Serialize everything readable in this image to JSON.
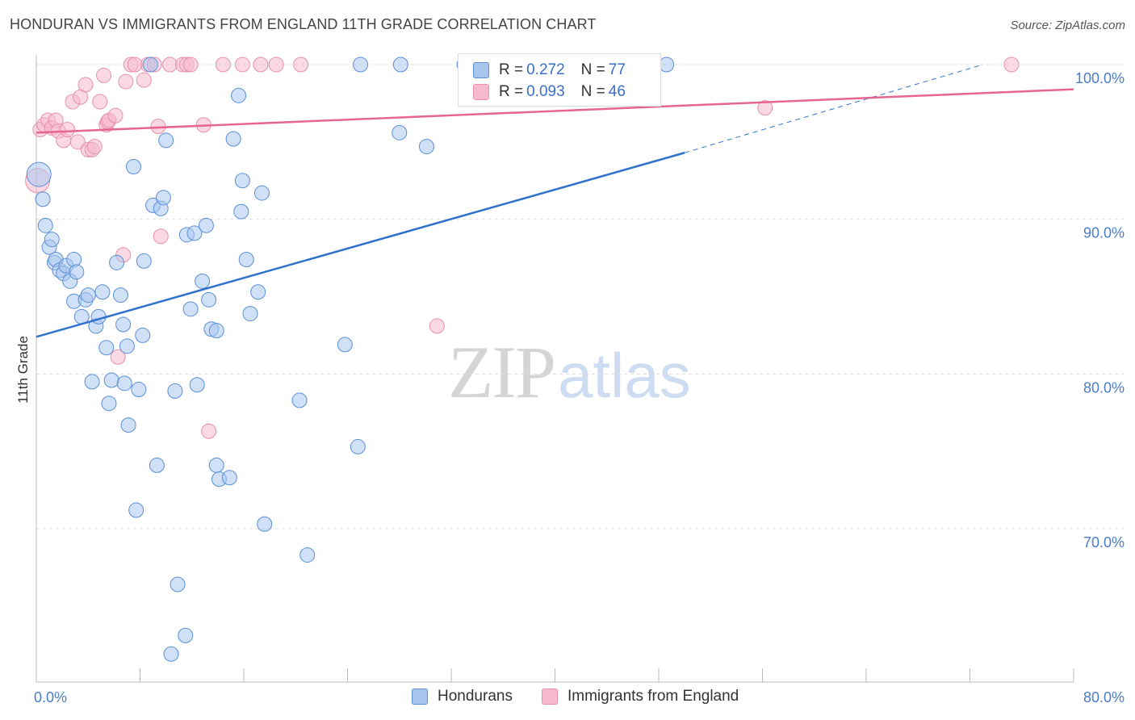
{
  "title": "HONDURAN VS IMMIGRANTS FROM ENGLAND 11TH GRADE CORRELATION CHART",
  "source": "Source: ZipAtlas.com",
  "watermark": {
    "zip": "ZIP",
    "atlas": "atlas"
  },
  "legend_top": {
    "rows": [
      {
        "r_label": "R = ",
        "r_value": "0.272",
        "n_label": "N = ",
        "n_value": "77"
      },
      {
        "r_label": "R = ",
        "r_value": "0.093",
        "n_label": "N = ",
        "n_value": "46"
      }
    ]
  },
  "legend_bottom": [
    "Hondurans",
    "Immigrants from England"
  ],
  "colors": {
    "blue_fill": "#a9c6ee",
    "blue_stroke": "#5b8fd6",
    "blue_line": "#2f72cc",
    "pink_fill": "#f6b9cd",
    "pink_stroke": "#e890ab",
    "pink_line": "#e6668f",
    "grid": "#dddddd",
    "tick_text": "#4a7cc9"
  },
  "chart_data": {
    "type": "scatter",
    "title": "HONDURAN VS IMMIGRANTS FROM ENGLAND 11TH GRADE CORRELATION CHART",
    "xlabel": "",
    "ylabel": "11th Grade",
    "xlim": [
      0,
      80
    ],
    "ylim": [
      60,
      101
    ],
    "x_tick_labels": [
      {
        "value": 0,
        "label": "0.0%"
      },
      {
        "value": 80,
        "label": "80.0%"
      }
    ],
    "x_minor_ticks": [
      8,
      16,
      24,
      32,
      40,
      48,
      56,
      64,
      72,
      80
    ],
    "y_ticks": [
      {
        "value": 100,
        "label": "100.0%"
      },
      {
        "value": 90,
        "label": "90.0%"
      },
      {
        "value": 80,
        "label": "80.0%"
      },
      {
        "value": 70,
        "label": "70.0%"
      }
    ],
    "grid": true,
    "legend_position": "top-center",
    "series": [
      {
        "name": "Hondurans",
        "regression": {
          "x0": 0,
          "y0": 82.4,
          "x1": 50,
          "y1": 94.3,
          "dashed_to_x": 73,
          "dashed_to_y": 100
        },
        "points": [
          [
            0.2,
            92.9
          ],
          [
            0.5,
            91.3
          ],
          [
            0.7,
            89.6
          ],
          [
            1.0,
            88.2
          ],
          [
            1.2,
            88.7
          ],
          [
            1.4,
            87.2
          ],
          [
            1.5,
            87.4
          ],
          [
            1.8,
            86.7
          ],
          [
            2.1,
            86.5
          ],
          [
            2.3,
            87.0
          ],
          [
            2.6,
            86.0
          ],
          [
            2.9,
            87.4
          ],
          [
            3.1,
            86.6
          ],
          [
            2.9,
            84.7
          ],
          [
            3.5,
            83.7
          ],
          [
            3.8,
            84.8
          ],
          [
            4.0,
            85.1
          ],
          [
            4.6,
            83.1
          ],
          [
            4.8,
            83.7
          ],
          [
            5.1,
            85.3
          ],
          [
            5.4,
            81.7
          ],
          [
            5.6,
            78.1
          ],
          [
            4.3,
            79.5
          ],
          [
            5.8,
            79.6
          ],
          [
            6.2,
            87.2
          ],
          [
            6.5,
            85.1
          ],
          [
            6.7,
            83.2
          ],
          [
            6.8,
            79.4
          ],
          [
            7.0,
            81.8
          ],
          [
            7.1,
            76.7
          ],
          [
            7.5,
            93.4
          ],
          [
            7.7,
            71.2
          ],
          [
            7.9,
            79.0
          ],
          [
            8.2,
            82.5
          ],
          [
            8.3,
            87.3
          ],
          [
            8.8,
            100.0
          ],
          [
            9.0,
            90.9
          ],
          [
            9.3,
            74.1
          ],
          [
            9.6,
            90.7
          ],
          [
            9.8,
            91.4
          ],
          [
            10.0,
            95.1
          ],
          [
            10.4,
            61.9
          ],
          [
            10.7,
            78.9
          ],
          [
            10.9,
            66.4
          ],
          [
            11.5,
            63.1
          ],
          [
            11.6,
            89.0
          ],
          [
            11.9,
            84.2
          ],
          [
            12.2,
            89.1
          ],
          [
            12.4,
            79.3
          ],
          [
            12.8,
            86.0
          ],
          [
            13.1,
            89.6
          ],
          [
            13.3,
            84.8
          ],
          [
            13.5,
            82.9
          ],
          [
            13.9,
            82.8
          ],
          [
            13.9,
            74.1
          ],
          [
            14.1,
            73.2
          ],
          [
            14.9,
            73.3
          ],
          [
            15.2,
            95.2
          ],
          [
            15.6,
            98.0
          ],
          [
            15.8,
            90.5
          ],
          [
            15.9,
            92.5
          ],
          [
            16.2,
            87.4
          ],
          [
            16.5,
            83.9
          ],
          [
            17.1,
            85.3
          ],
          [
            17.4,
            91.7
          ],
          [
            17.6,
            70.3
          ],
          [
            20.3,
            78.3
          ],
          [
            20.9,
            68.3
          ],
          [
            23.8,
            81.9
          ],
          [
            24.8,
            75.3
          ],
          [
            25.0,
            100.0
          ],
          [
            28.0,
            95.6
          ],
          [
            28.1,
            100.0
          ],
          [
            30.1,
            94.7
          ],
          [
            33.0,
            100.0
          ],
          [
            41.5,
            100.0
          ],
          [
            48.6,
            100.0
          ]
        ]
      },
      {
        "name": "Immigrants from England",
        "regression": {
          "x0": 0,
          "y0": 95.6,
          "x1": 80,
          "y1": 98.4
        },
        "points": [
          [
            0.1,
            92.5
          ],
          [
            0.3,
            95.8
          ],
          [
            0.6,
            96.1
          ],
          [
            0.9,
            96.4
          ],
          [
            1.2,
            95.9
          ],
          [
            1.5,
            96.4
          ],
          [
            1.7,
            95.7
          ],
          [
            2.1,
            95.1
          ],
          [
            2.4,
            95.8
          ],
          [
            2.8,
            97.6
          ],
          [
            3.2,
            95.0
          ],
          [
            3.4,
            97.9
          ],
          [
            3.8,
            98.7
          ],
          [
            4.0,
            94.5
          ],
          [
            4.3,
            94.5
          ],
          [
            4.5,
            94.7
          ],
          [
            4.9,
            97.6
          ],
          [
            5.2,
            99.3
          ],
          [
            5.4,
            96.1
          ],
          [
            5.5,
            96.3
          ],
          [
            5.6,
            96.4
          ],
          [
            6.1,
            96.7
          ],
          [
            6.3,
            81.1
          ],
          [
            6.7,
            87.7
          ],
          [
            6.9,
            98.9
          ],
          [
            7.3,
            100.0
          ],
          [
            7.6,
            100.0
          ],
          [
            8.3,
            99.0
          ],
          [
            8.6,
            100.0
          ],
          [
            9.1,
            100.0
          ],
          [
            9.4,
            96.0
          ],
          [
            9.6,
            88.9
          ],
          [
            10.3,
            100.0
          ],
          [
            11.3,
            100.0
          ],
          [
            11.6,
            100.0
          ],
          [
            11.9,
            100.0
          ],
          [
            12.9,
            96.1
          ],
          [
            13.3,
            76.3
          ],
          [
            14.4,
            100.0
          ],
          [
            15.9,
            100.0
          ],
          [
            17.3,
            100.0
          ],
          [
            18.5,
            100.0
          ],
          [
            20.4,
            100.0
          ],
          [
            30.9,
            83.1
          ],
          [
            56.2,
            97.2
          ],
          [
            75.2,
            100.0
          ]
        ]
      }
    ]
  }
}
